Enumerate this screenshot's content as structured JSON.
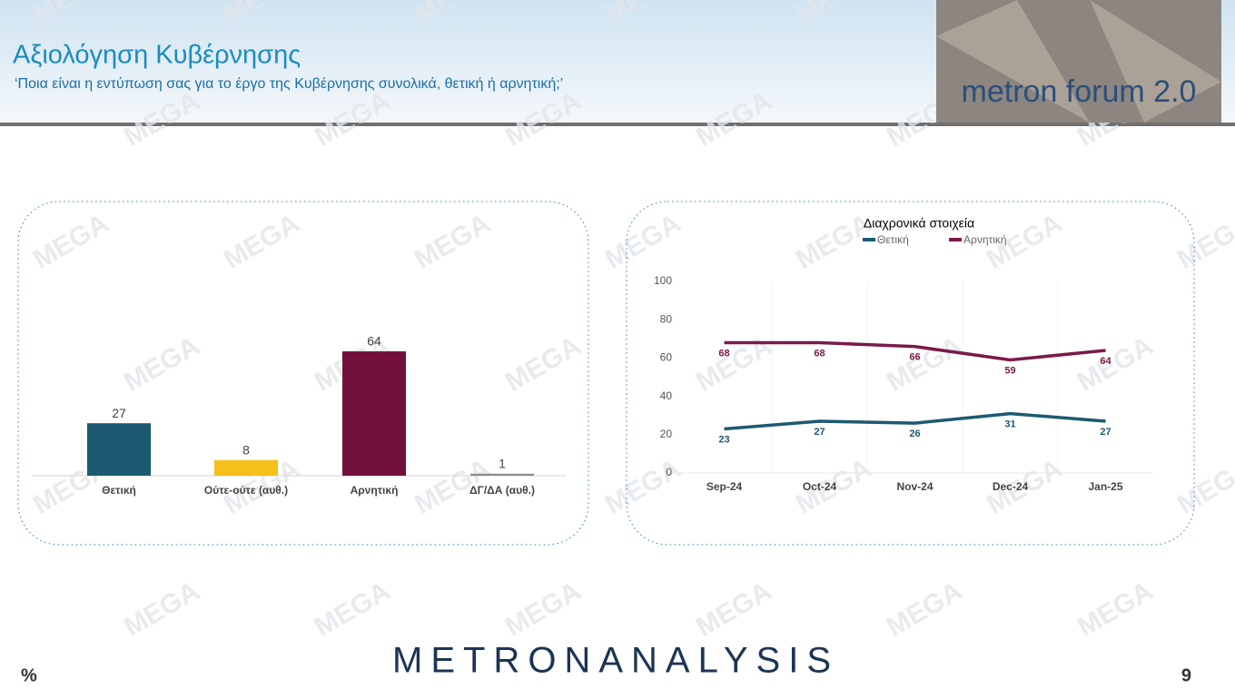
{
  "header": {
    "title": "Αξιολόγηση Κυβέρνησης",
    "subtitle": "‘Ποια είναι η εντύπωση σας για το έργο της Κυβέρνησης συνολικά, θετική ή αρνητική;’",
    "logo": "metron forum 2.0"
  },
  "watermark": "MEGA",
  "footer": {
    "unit": "%",
    "brand": "METRONANALYSIS",
    "page": "9"
  },
  "chart_data": [
    {
      "type": "bar",
      "categories": [
        "Θετική",
        "Ούτε-ούτε (αυθ.)",
        "Αρνητική",
        "ΔΓ/ΔΑ (αυθ.)"
      ],
      "values": [
        27,
        8,
        64,
        1
      ],
      "colors": [
        "#1b5a72",
        "#f5c01a",
        "#72103c",
        "#8c8c8c"
      ]
    },
    {
      "type": "line",
      "title": "Διαχρονικά στοιχεία",
      "categories": [
        "Sep-24",
        "Oct-24",
        "Nov-24",
        "Dec-24",
        "Jan-25"
      ],
      "series": [
        {
          "name": "Θετική",
          "color": "#1b5a72",
          "values": [
            23,
            27,
            26,
            31,
            27
          ]
        },
        {
          "name": "Αρνητική",
          "color": "#7a1a4a",
          "values": [
            68,
            68,
            66,
            59,
            64
          ]
        }
      ],
      "ylim": [
        0,
        100
      ],
      "yticks": [
        0,
        20,
        40,
        60,
        80,
        100
      ],
      "legend": "top"
    }
  ]
}
